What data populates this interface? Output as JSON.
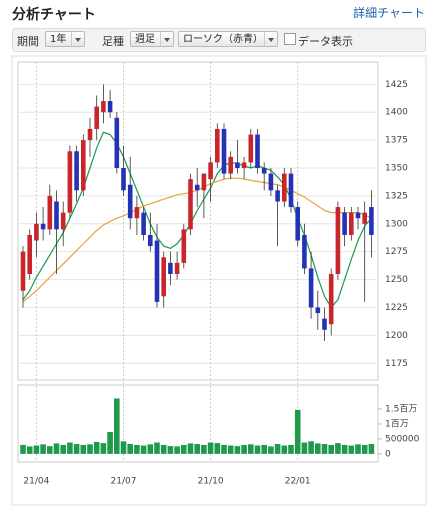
{
  "header": {
    "title": "分析チャート",
    "link": "詳細チャート"
  },
  "controls": {
    "period_label": "期間",
    "period_value": "1年",
    "type_label": "足種",
    "type_value": "週足",
    "style_value": "ローソク（赤青）",
    "data_label": "データ表示"
  },
  "chart_data": [
    {
      "type": "candlestick",
      "categories": [
        null,
        null,
        "21/04",
        null,
        null,
        null,
        null,
        null,
        null,
        null,
        null,
        null,
        null,
        null,
        null,
        "21/07",
        null,
        null,
        null,
        null,
        null,
        null,
        null,
        null,
        null,
        null,
        null,
        null,
        "21/10",
        null,
        null,
        null,
        null,
        null,
        null,
        null,
        null,
        null,
        null,
        null,
        null,
        "22/01",
        null,
        null,
        null,
        null,
        null,
        null,
        null,
        null,
        null,
        null,
        null
      ],
      "open": [
        1240,
        1255,
        1285,
        1300,
        1295,
        1320,
        1295,
        1310,
        1365,
        1330,
        1375,
        1385,
        1400,
        1410,
        1395,
        1350,
        1335,
        1305,
        1310,
        1290,
        1285,
        1235,
        1265,
        1255,
        1265,
        1295,
        1335,
        1330,
        1340,
        1355,
        1385,
        1345,
        1355,
        1350,
        1355,
        1380,
        1350,
        1345,
        1330,
        1320,
        1345,
        1315,
        1290,
        1260,
        1225,
        1215,
        1210,
        1255,
        1310,
        1290,
        1310,
        1300,
        1315
      ],
      "high": [
        1280,
        1295,
        1310,
        1315,
        1335,
        1330,
        1320,
        1370,
        1370,
        1380,
        1395,
        1415,
        1425,
        1420,
        1400,
        1370,
        1360,
        1325,
        1315,
        1310,
        1300,
        1275,
        1275,
        1275,
        1300,
        1345,
        1350,
        1345,
        1360,
        1390,
        1390,
        1365,
        1375,
        1360,
        1385,
        1385,
        1355,
        1350,
        1335,
        1350,
        1350,
        1320,
        1300,
        1275,
        1240,
        1225,
        1260,
        1320,
        1315,
        1315,
        1315,
        1320,
        1330
      ],
      "low": [
        1225,
        1250,
        1270,
        1285,
        1290,
        1255,
        1280,
        1305,
        1320,
        1325,
        1360,
        1375,
        1390,
        1395,
        1345,
        1325,
        1295,
        1290,
        1285,
        1275,
        1225,
        1225,
        1245,
        1250,
        1260,
        1290,
        1315,
        1305,
        1320,
        1350,
        1340,
        1340,
        1345,
        1340,
        1350,
        1345,
        1330,
        1325,
        1280,
        1315,
        1310,
        1280,
        1255,
        1215,
        1205,
        1195,
        1200,
        1250,
        1280,
        1285,
        1295,
        1230,
        1270
      ],
      "close": [
        1275,
        1290,
        1300,
        1295,
        1325,
        1295,
        1310,
        1365,
        1330,
        1375,
        1385,
        1405,
        1410,
        1400,
        1350,
        1330,
        1305,
        1315,
        1290,
        1280,
        1230,
        1270,
        1255,
        1265,
        1295,
        1340,
        1330,
        1345,
        1355,
        1385,
        1345,
        1360,
        1350,
        1355,
        1380,
        1350,
        1345,
        1330,
        1320,
        1345,
        1315,
        1285,
        1260,
        1225,
        1220,
        1205,
        1255,
        1315,
        1290,
        1310,
        1305,
        1310,
        1290
      ],
      "up_color": "#c8262b",
      "down_color": "#2433b5",
      "lines": [
        {
          "color": "#1a9a50",
          "values": [
            1232,
            1240,
            1252,
            1262,
            1272,
            1282,
            1292,
            1305,
            1318,
            1332,
            1350,
            1368,
            1382,
            1380,
            1372,
            1360,
            1345,
            1330,
            1315,
            1300,
            1288,
            1280,
            1278,
            1282,
            1290,
            1300,
            1312,
            1322,
            1332,
            1345,
            1352,
            1355,
            1354,
            1352,
            1350,
            1352,
            1350,
            1348,
            1342,
            1335,
            1322,
            1305,
            1290,
            1272,
            1252,
            1235,
            1225,
            1232,
            1250,
            1268,
            1285,
            1298,
            1305
          ]
        },
        {
          "color": "#e8a33a",
          "values": [
            1230,
            1235,
            1240,
            1246,
            1252,
            1258,
            1264,
            1270,
            1276,
            1282,
            1288,
            1294,
            1299,
            1302,
            1305,
            1307,
            1310,
            1313,
            1316,
            1318,
            1320,
            1322,
            1324,
            1326,
            1327,
            1328,
            1330,
            1333,
            1336,
            1338,
            1340,
            1341,
            1341,
            1340,
            1339,
            1338,
            1337,
            1336,
            1335,
            1333,
            1330,
            1327,
            1324,
            1320,
            1316,
            1312,
            1310,
            1310,
            1310,
            1310,
            1310,
            1308,
            1305
          ]
        }
      ],
      "ylim": [
        1160,
        1445
      ],
      "yticks": [
        1175,
        1200,
        1225,
        1250,
        1275,
        1300,
        1325,
        1350,
        1375,
        1400,
        1425
      ],
      "grid": true
    },
    {
      "type": "bar",
      "values": [
        300000,
        250000,
        280000,
        320000,
        260000,
        350000,
        300000,
        380000,
        330000,
        300000,
        320000,
        400000,
        360000,
        730000,
        1850000,
        420000,
        330000,
        300000,
        280000,
        320000,
        380000,
        300000,
        260000,
        250000,
        300000,
        350000,
        330000,
        300000,
        380000,
        360000,
        300000,
        280000,
        260000,
        300000,
        320000,
        280000,
        300000,
        250000,
        330000,
        280000,
        300000,
        1470000,
        380000,
        420000,
        350000,
        330000,
        300000,
        360000,
        300000,
        280000,
        320000,
        300000,
        330000
      ],
      "color": "#1f9a4c",
      "ylim": [
        -270000,
        2300000
      ],
      "yticks": [
        0,
        500000,
        {
          "value": 1000000,
          "label": "1百万"
        },
        {
          "value": 1500000,
          "label": "1.5百万"
        }
      ]
    }
  ]
}
